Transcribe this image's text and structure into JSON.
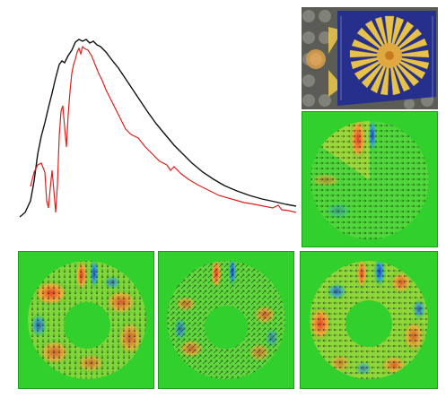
{
  "figure": {
    "spectrum_panel": {
      "series_colors": {
        "black_curve": "#111111",
        "red_curve": "#d9231f"
      }
    },
    "micrograph_panel": {
      "colors": {
        "background": "#5a5c55",
        "substrate": "#26308c",
        "fan": "#e7c24a",
        "center": "#e0a840"
      },
      "icons": [
        "fan-structure-icon",
        "lens-disk-icon"
      ]
    },
    "field_maps": {
      "count": 4,
      "colors": {
        "background": "#31d02c",
        "hot": "#e8422a",
        "warm": "#f0b03a",
        "cool": "#39a9e0",
        "cold": "#1f3fa8",
        "arrows": "#1a1a1a"
      }
    }
  }
}
